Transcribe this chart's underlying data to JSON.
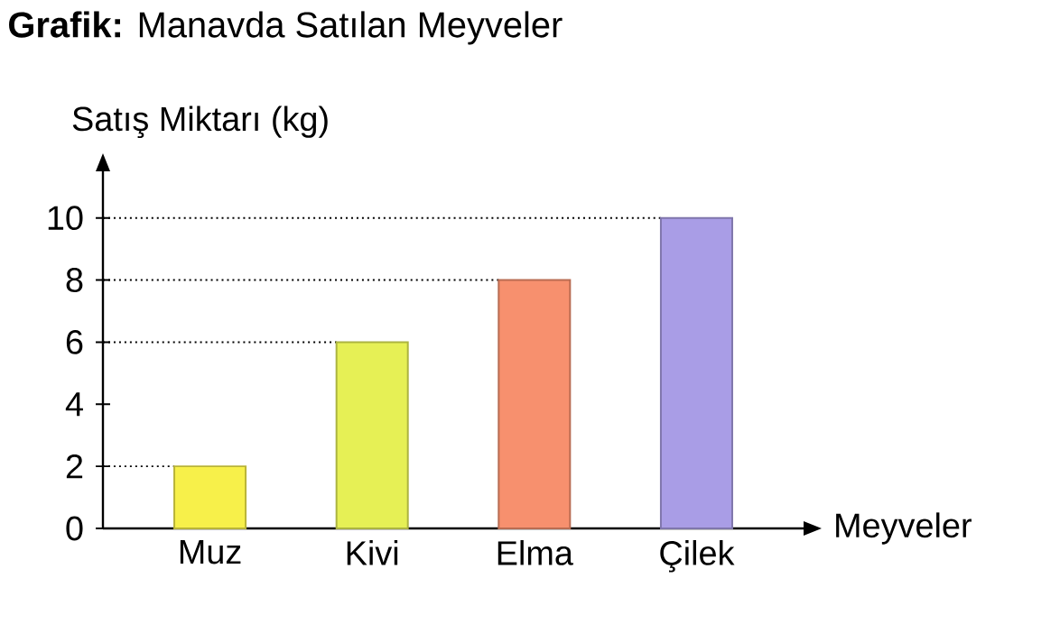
{
  "chart_data": {
    "type": "bar",
    "title": "**Grafik:** Manavda Satılan Meyveler",
    "ylabel": "Satış Miktarı (kg)",
    "xlabel": "Meyveler",
    "categories": [
      "Muz",
      "Kivi",
      "Elma",
      "Çilek"
    ],
    "values": [
      2,
      6,
      8,
      10
    ],
    "colors": [
      "#f7f04a",
      "#e6f055",
      "#f7906e",
      "#a99de6"
    ],
    "ylim": [
      0,
      11.5
    ],
    "yticks": [
      0,
      2,
      4,
      6,
      8,
      10
    ],
    "ref_lines": [
      {
        "axis": "y",
        "value": 2,
        "line_style": "dotted"
      },
      {
        "axis": "y",
        "value": 6,
        "line_style": "dotted"
      },
      {
        "axis": "y",
        "value": 8,
        "line_style": "dotted"
      },
      {
        "axis": "y",
        "value": 10,
        "line_style": "dotted"
      }
    ]
  }
}
